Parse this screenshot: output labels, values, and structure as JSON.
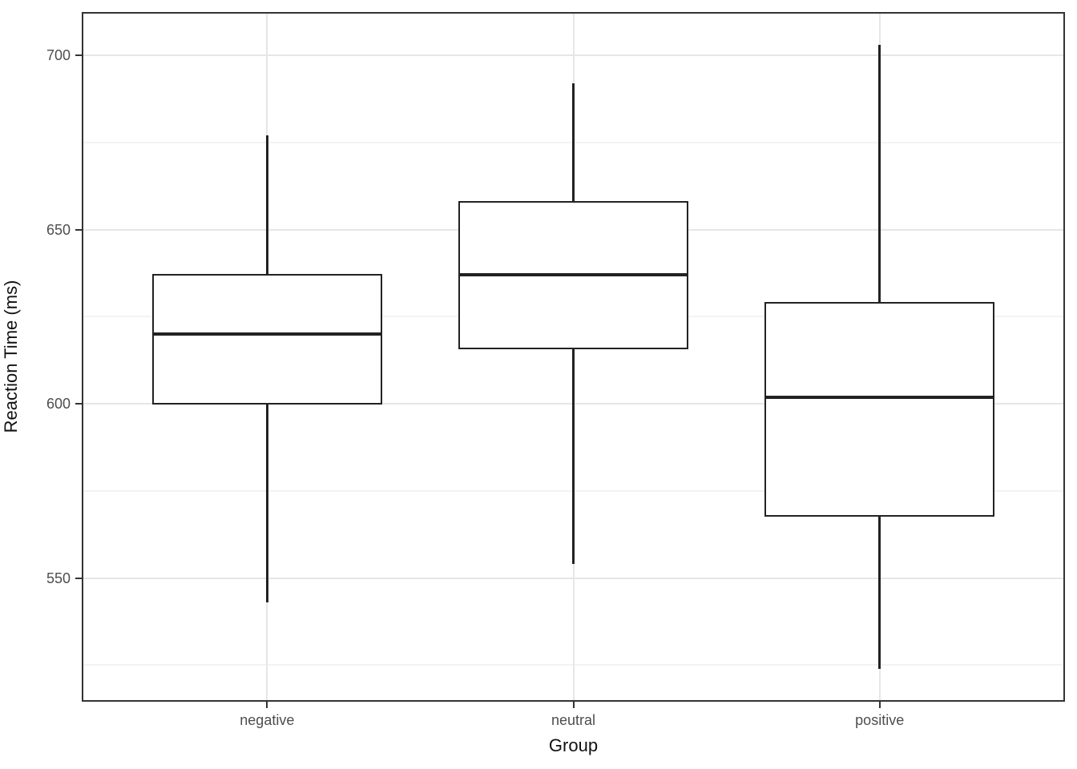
{
  "figure": {
    "background": "#ffffff"
  },
  "colors": {
    "box_stroke": "#222222",
    "panel_border": "#333333",
    "grid_major": "#e6e6e6",
    "grid_minor": "#f3f3f3",
    "tick_label": "#4d4d4d",
    "axis_title": "#111111",
    "background": "#ffffff"
  },
  "chart_data": {
    "type": "boxplot",
    "title": "",
    "xlabel": "Group",
    "ylabel": "Reaction Time (ms)",
    "categories": [
      "negative",
      "neutral",
      "positive"
    ],
    "series": [
      {
        "name": "negative",
        "min": 543,
        "q1": 600,
        "median": 620,
        "q3": 637,
        "max": 677,
        "outliers": []
      },
      {
        "name": "neutral",
        "min": 554,
        "q1": 616,
        "median": 637,
        "q3": 658,
        "max": 692,
        "outliers": []
      },
      {
        "name": "positive",
        "min": 524,
        "q1": 568,
        "median": 602,
        "q3": 629,
        "max": 703,
        "outliers": []
      }
    ],
    "yticks": [
      550,
      600,
      650,
      700
    ],
    "yticks_minor": [
      525,
      575,
      625,
      675
    ],
    "ylim": [
      515,
      712
    ],
    "grid": true,
    "legend": false,
    "orientation": "vertical"
  }
}
